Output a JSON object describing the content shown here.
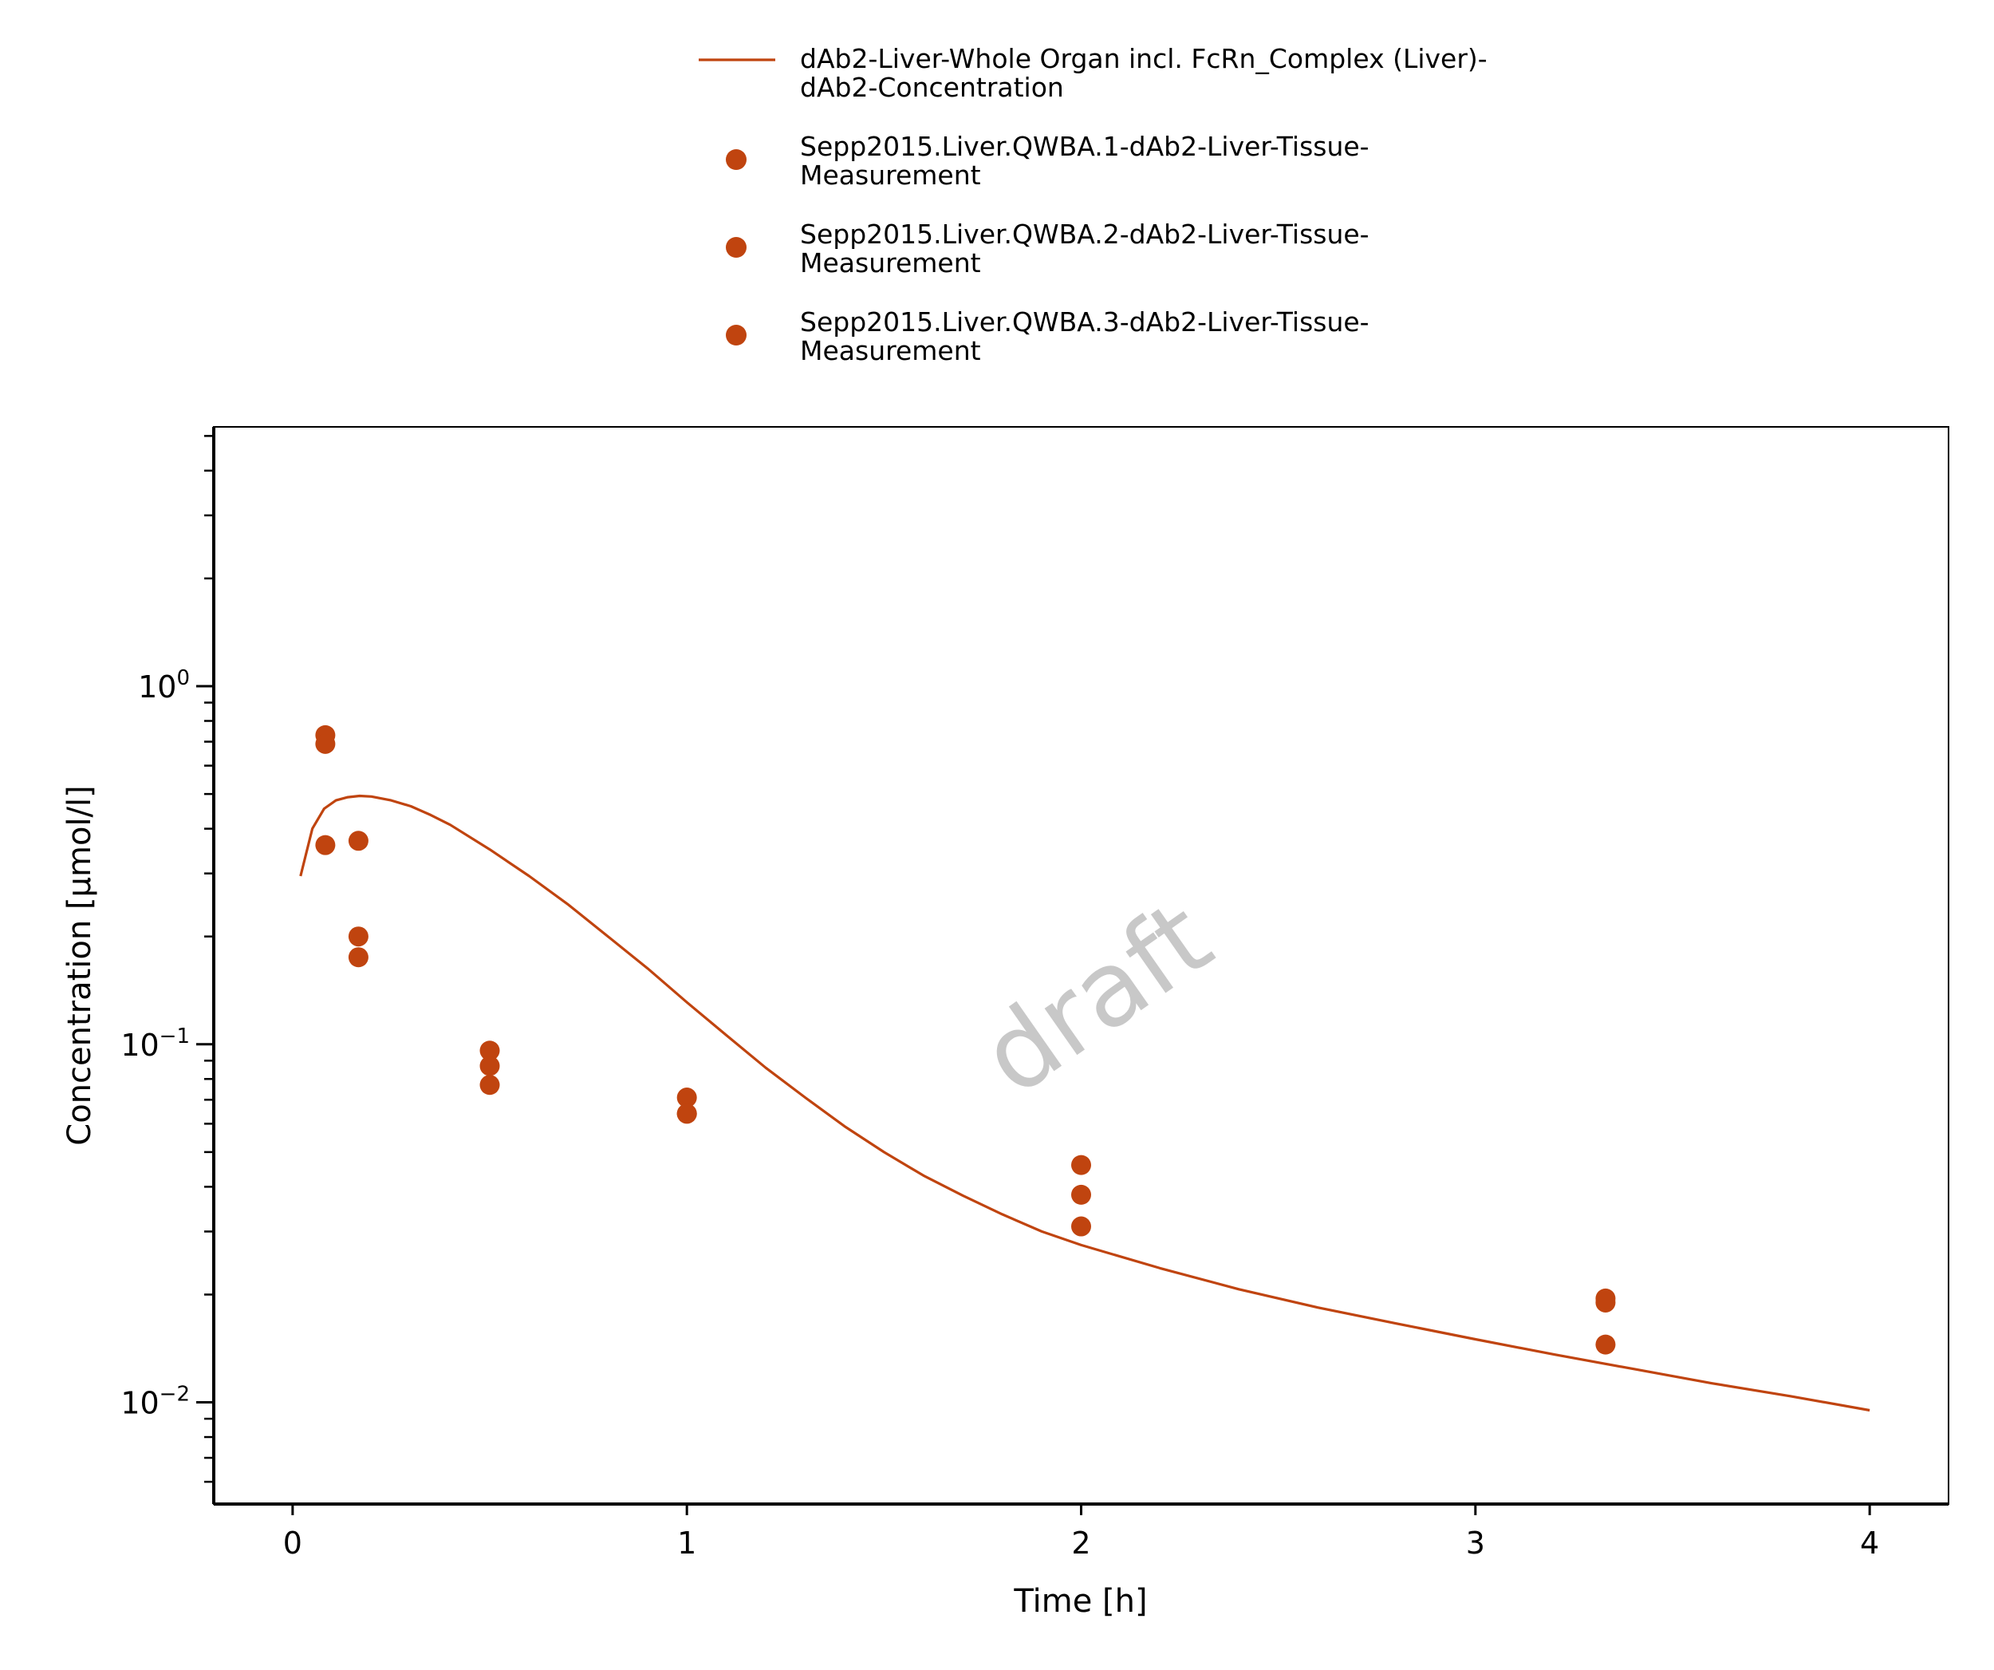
{
  "chart_data": {
    "type": "scatter",
    "xlabel": "Time [h]",
    "ylabel": "Concentration [µmol/l]",
    "xlim": [
      -0.2,
      4.2
    ],
    "ylim": [
      0.0052,
      5.3
    ],
    "yscale": "log",
    "grid": false,
    "legend_position": "top-center",
    "watermark": "draft",
    "x_ticks": [
      0,
      1,
      2,
      3,
      4
    ],
    "y_ticks": [
      {
        "value": 1,
        "base": "10",
        "exp": "0"
      },
      {
        "value": 0.1,
        "base": "10",
        "exp": "−1"
      },
      {
        "value": 0.01,
        "base": "10",
        "exp": "−2"
      }
    ],
    "color": "#c0440f",
    "series": [
      {
        "name": "dAb2-Liver-Whole Organ incl. FcRn_Complex (Liver)-dAb2-Concentration",
        "legend_lines": [
          "dAb2-Liver-Whole Organ incl. FcRn_Complex (Liver)-",
          "dAb2-Concentration"
        ],
        "kind": "line",
        "x": [
          0.02,
          0.05,
          0.08,
          0.11,
          0.14,
          0.17,
          0.2,
          0.25,
          0.3,
          0.35,
          0.4,
          0.5,
          0.6,
          0.7,
          0.8,
          0.9,
          1.0,
          1.1,
          1.2,
          1.3,
          1.4,
          1.5,
          1.6,
          1.7,
          1.8,
          1.9,
          2.0,
          2.2,
          2.4,
          2.6,
          2.8,
          3.0,
          3.2,
          3.4,
          3.6,
          3.8,
          4.0
        ],
        "y": [
          0.295,
          0.4,
          0.455,
          0.48,
          0.49,
          0.494,
          0.492,
          0.48,
          0.462,
          0.437,
          0.41,
          0.35,
          0.295,
          0.245,
          0.2,
          0.163,
          0.131,
          0.106,
          0.086,
          0.071,
          0.059,
          0.05,
          0.043,
          0.0378,
          0.0335,
          0.03,
          0.0275,
          0.0237,
          0.0207,
          0.0184,
          0.0166,
          0.015,
          0.0136,
          0.0124,
          0.0113,
          0.0104,
          0.0095
        ]
      },
      {
        "name": "Sepp2015.Liver.QWBA.1-dAb2-Liver-Tissue-Measurement",
        "legend_lines": [
          "Sepp2015.Liver.QWBA.1-dAb2-Liver-Tissue-",
          "Measurement"
        ],
        "kind": "scatter",
        "x": [
          0.083,
          0.167,
          0.5,
          1.0,
          2.0,
          3.33
        ],
        "y": [
          0.73,
          0.37,
          0.096,
          0.071,
          0.046,
          0.0195
        ]
      },
      {
        "name": "Sepp2015.Liver.QWBA.2-dAb2-Liver-Tissue-Measurement",
        "legend_lines": [
          "Sepp2015.Liver.QWBA.2-dAb2-Liver-Tissue-",
          "Measurement"
        ],
        "kind": "scatter",
        "x": [
          0.083,
          0.167,
          0.5,
          1.0,
          2.0,
          3.33
        ],
        "y": [
          0.69,
          0.2,
          0.087,
          0.064,
          0.038,
          0.019
        ]
      },
      {
        "name": "Sepp2015.Liver.QWBA.3-dAb2-Liver-Tissue-Measurement",
        "legend_lines": [
          "Sepp2015.Liver.QWBA.3-dAb2-Liver-Tissue-",
          "Measurement"
        ],
        "kind": "scatter",
        "x": [
          0.083,
          0.167,
          0.5,
          1.0,
          2.0,
          3.33
        ],
        "y": [
          0.36,
          0.175,
          0.077,
          0.064,
          0.031,
          0.0145
        ]
      }
    ]
  }
}
